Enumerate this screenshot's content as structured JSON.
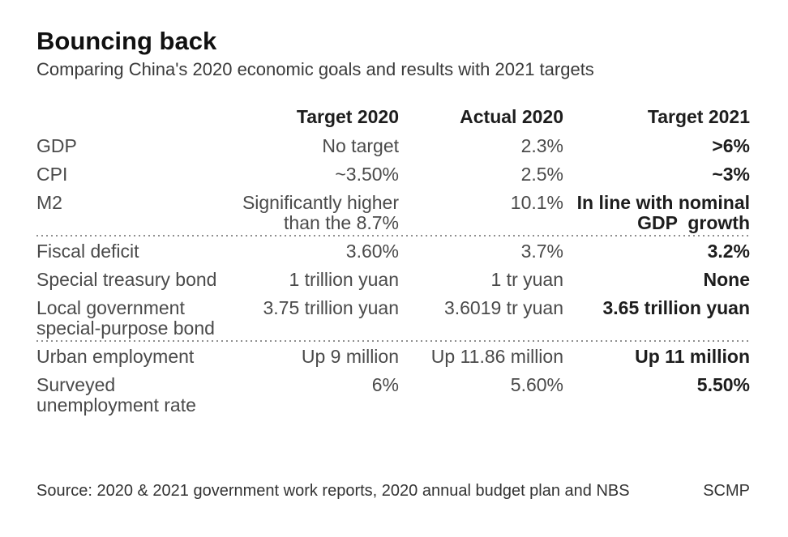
{
  "header": {
    "title": "Bouncing back",
    "subtitle": "Comparing China's 2020 economic goals and results with 2021 targets"
  },
  "chart_data": {
    "type": "table",
    "title": "Bouncing back",
    "subtitle": "Comparing China's 2020 economic goals and results with 2021 targets",
    "columns": [
      "",
      "Target 2020",
      "Actual 2020",
      "Target 2021"
    ],
    "rows": [
      {
        "label": "GDP",
        "target_2020": "No target",
        "actual_2020": "2.3%",
        "target_2021": ">6%"
      },
      {
        "label": "CPI",
        "target_2020": "~3.50%",
        "actual_2020": "2.5%",
        "target_2021": "~3%"
      },
      {
        "label": "M2",
        "target_2020": "Significantly higher\nthan the 8.7%",
        "actual_2020": "10.1%",
        "target_2021": "In line with nominal\nGDP  growth"
      },
      {
        "label": "Fiscal deficit",
        "target_2020": "3.60%",
        "actual_2020": "3.7%",
        "target_2021": "3.2%"
      },
      {
        "label": "Special treasury bond",
        "target_2020": "1 trillion yuan",
        "actual_2020": "1 tr yuan",
        "target_2021": "None"
      },
      {
        "label": "Local government\nspecial-purpose bond",
        "target_2020": "3.75 trillion yuan",
        "actual_2020": "3.6019 tr yuan",
        "target_2021": "3.65 trillion yuan"
      },
      {
        "label": "Urban employment",
        "target_2020": "Up 9 million",
        "actual_2020": "Up 11.86 million",
        "target_2021": "Up 11 million"
      },
      {
        "label": "Surveyed\nunemployment rate",
        "target_2020": "6%",
        "actual_2020": "5.60%",
        "target_2021": "5.50%"
      }
    ],
    "group_separators_after_row_indexes": [
      2,
      5
    ],
    "legend_position": "none",
    "grid": "dotted-group-separators-only"
  },
  "footer": {
    "source": "Source: 2020 & 2021 government work reports, 2020 annual budget plan and NBS",
    "credit": "SCMP"
  },
  "colors": {
    "background": "#ffffff",
    "text_regular": "#4a4a4a",
    "text_strong": "#1d1d1d",
    "separator_dots": "#8f8f8f"
  }
}
